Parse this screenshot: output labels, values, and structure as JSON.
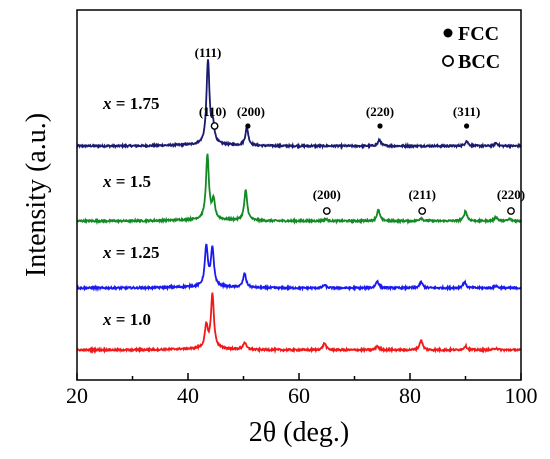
{
  "chart_data": {
    "type": "line",
    "title": "",
    "xlabel": "2θ (deg.)",
    "ylabel": "Intensity (a.u.)",
    "xlim": [
      20,
      100
    ],
    "x_ticks": [
      "20",
      "40",
      "60",
      "80",
      "100"
    ],
    "y_ticks": [],
    "grid": false,
    "legend": {
      "placement": "top-right",
      "entries": [
        {
          "symbol": "filled-circle",
          "label": "FCC"
        },
        {
          "symbol": "open-circle",
          "label": "BCC"
        }
      ]
    },
    "series": [
      {
        "name": "1.75",
        "label_var": "x",
        "label_eq": " = ",
        "color": "#1a1a6e",
        "peaks": [
          {
            "x": 43.6,
            "h": 84
          },
          {
            "x": 44.5,
            "h": 18
          },
          {
            "x": 50.6,
            "h": 18
          },
          {
            "x": 74.5,
            "h": 6
          },
          {
            "x": 90.2,
            "h": 5
          },
          {
            "x": 95.5,
            "h": 3
          }
        ],
        "annotations": [
          {
            "text": "(111)",
            "x": 43.6,
            "marker": "filled"
          },
          {
            "text": "(110)",
            "x": 44.8,
            "marker": "open"
          },
          {
            "text": "(200)",
            "x": 50.8,
            "marker": "filled"
          },
          {
            "text": "(220)",
            "x": 74.6,
            "marker": "filled"
          },
          {
            "text": "(311)",
            "x": 90.2,
            "marker": "filled"
          }
        ]
      },
      {
        "name": "1.5",
        "label_var": "x",
        "label_eq": " = ",
        "color": "#138a26",
        "peaks": [
          {
            "x": 43.5,
            "h": 64
          },
          {
            "x": 44.6,
            "h": 18
          },
          {
            "x": 50.4,
            "h": 30
          },
          {
            "x": 64.8,
            "h": 2
          },
          {
            "x": 74.3,
            "h": 11
          },
          {
            "x": 82.0,
            "h": 3
          },
          {
            "x": 90.0,
            "h": 10
          },
          {
            "x": 95.5,
            "h": 4
          },
          {
            "x": 98.0,
            "h": 2
          }
        ],
        "annotations": [
          {
            "text": "(200)",
            "x": 65.0,
            "marker": "open"
          },
          {
            "text": "(211)",
            "x": 82.2,
            "marker": "open"
          },
          {
            "text": "(220)",
            "x": 98.2,
            "marker": "open"
          }
        ]
      },
      {
        "name": "1.25",
        "label_var": "x",
        "label_eq": " = ",
        "color": "#1a1af0",
        "peaks": [
          {
            "x": 43.3,
            "h": 40
          },
          {
            "x": 44.4,
            "h": 38
          },
          {
            "x": 50.2,
            "h": 14
          },
          {
            "x": 64.6,
            "h": 3
          },
          {
            "x": 74.1,
            "h": 7
          },
          {
            "x": 82.0,
            "h": 6
          },
          {
            "x": 89.8,
            "h": 6
          },
          {
            "x": 95.5,
            "h": 2
          }
        ],
        "annotations": []
      },
      {
        "name": "1.0",
        "label_var": "x",
        "label_eq": " = ",
        "color": "#f01a1a",
        "peaks": [
          {
            "x": 43.3,
            "h": 22
          },
          {
            "x": 44.4,
            "h": 54
          },
          {
            "x": 50.2,
            "h": 7
          },
          {
            "x": 64.6,
            "h": 7
          },
          {
            "x": 74.1,
            "h": 4
          },
          {
            "x": 82.0,
            "h": 10
          },
          {
            "x": 90.0,
            "h": 4
          },
          {
            "x": 95.5,
            "h": 2
          }
        ],
        "annotations": []
      }
    ]
  }
}
